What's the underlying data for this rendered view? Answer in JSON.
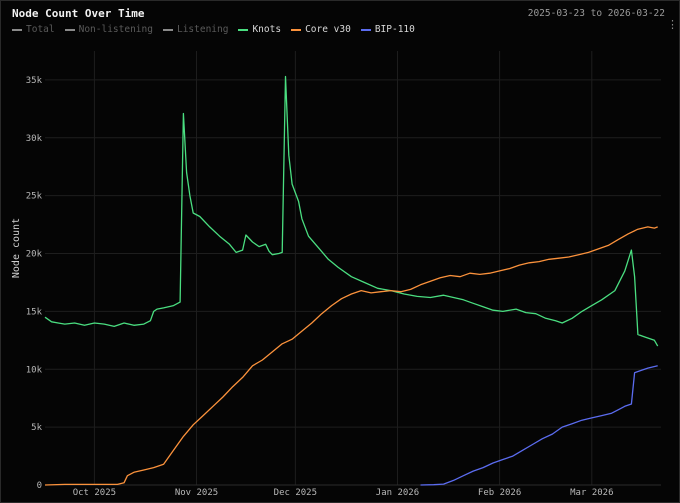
{
  "header": {
    "title": "Node Count Over Time",
    "date_range": "2025-03-23 to 2026-03-22"
  },
  "chart_data": {
    "type": "line",
    "title": "Node Count Over Time",
    "xlabel": "",
    "ylabel": "Node count",
    "ylim": [
      0,
      37500
    ],
    "y_ticks": [
      0,
      5000,
      10000,
      15000,
      20000,
      25000,
      30000,
      35000
    ],
    "y_tick_labels": [
      "0",
      "5k",
      "10k",
      "15k",
      "20k",
      "25k",
      "30k",
      "35k"
    ],
    "x_range": [
      "2025-09-16",
      "2026-03-22"
    ],
    "x_ticks": [
      "2025-10-01",
      "2025-11-01",
      "2025-12-01",
      "2026-01-01",
      "2026-02-01",
      "2026-03-01"
    ],
    "x_tick_labels": [
      "Oct 2025",
      "Nov 2025",
      "Dec 2025",
      "Jan 2026",
      "Feb 2026",
      "Mar 2026"
    ],
    "grid": true,
    "legend_position": "top-left",
    "legend": [
      {
        "name": "Total",
        "color": "#8a8a8a",
        "enabled": false
      },
      {
        "name": "Non-listening",
        "color": "#8a8a8a",
        "enabled": false
      },
      {
        "name": "Listening",
        "color": "#8a8a8a",
        "enabled": false
      },
      {
        "name": "Knots",
        "color": "#4ade80",
        "enabled": true
      },
      {
        "name": "Core v30",
        "color": "#fb923c",
        "enabled": true
      },
      {
        "name": "BIP-110",
        "color": "#5b6cf0",
        "enabled": true
      }
    ],
    "series": [
      {
        "name": "Knots",
        "color": "#4ade80",
        "points": [
          [
            "2025-09-16",
            14500
          ],
          [
            "2025-09-18",
            14100
          ],
          [
            "2025-09-20",
            14000
          ],
          [
            "2025-09-22",
            13900
          ],
          [
            "2025-09-25",
            14000
          ],
          [
            "2025-09-28",
            13800
          ],
          [
            "2025-10-01",
            14000
          ],
          [
            "2025-10-04",
            13900
          ],
          [
            "2025-10-07",
            13700
          ],
          [
            "2025-10-10",
            14000
          ],
          [
            "2025-10-13",
            13800
          ],
          [
            "2025-10-16",
            13900
          ],
          [
            "2025-10-18",
            14200
          ],
          [
            "2025-10-19",
            15000
          ],
          [
            "2025-10-20",
            15200
          ],
          [
            "2025-10-22",
            15300
          ],
          [
            "2025-10-25",
            15500
          ],
          [
            "2025-10-27",
            15800
          ],
          [
            "2025-10-28",
            32100
          ],
          [
            "2025-10-29",
            27000
          ],
          [
            "2025-10-30",
            25000
          ],
          [
            "2025-10-31",
            23500
          ],
          [
            "2025-11-02",
            23200
          ],
          [
            "2025-11-05",
            22300
          ],
          [
            "2025-11-08",
            21500
          ],
          [
            "2025-11-11",
            20800
          ],
          [
            "2025-11-13",
            20100
          ],
          [
            "2025-11-15",
            20300
          ],
          [
            "2025-11-16",
            21600
          ],
          [
            "2025-11-18",
            21000
          ],
          [
            "2025-11-20",
            20600
          ],
          [
            "2025-11-22",
            20800
          ],
          [
            "2025-11-23",
            20200
          ],
          [
            "2025-11-24",
            19900
          ],
          [
            "2025-11-26",
            20000
          ],
          [
            "2025-11-27",
            20100
          ],
          [
            "2025-11-28",
            35300
          ],
          [
            "2025-11-29",
            28500
          ],
          [
            "2025-11-30",
            26000
          ],
          [
            "2025-12-02",
            24500
          ],
          [
            "2025-12-03",
            23000
          ],
          [
            "2025-12-05",
            21500
          ],
          [
            "2025-12-08",
            20500
          ],
          [
            "2025-12-11",
            19500
          ],
          [
            "2025-12-14",
            18800
          ],
          [
            "2025-12-18",
            18000
          ],
          [
            "2025-12-22",
            17500
          ],
          [
            "2025-12-26",
            17000
          ],
          [
            "2025-12-30",
            16800
          ],
          [
            "2026-01-03",
            16500
          ],
          [
            "2026-01-07",
            16300
          ],
          [
            "2026-01-11",
            16200
          ],
          [
            "2026-01-15",
            16400
          ],
          [
            "2026-01-18",
            16200
          ],
          [
            "2026-01-21",
            16000
          ],
          [
            "2026-01-24",
            15700
          ],
          [
            "2026-01-27",
            15400
          ],
          [
            "2026-01-30",
            15100
          ],
          [
            "2026-02-02",
            15000
          ],
          [
            "2026-02-06",
            15200
          ],
          [
            "2026-02-09",
            14900
          ],
          [
            "2026-02-12",
            14800
          ],
          [
            "2026-02-15",
            14400
          ],
          [
            "2026-02-18",
            14200
          ],
          [
            "2026-02-20",
            14000
          ],
          [
            "2026-02-23",
            14400
          ],
          [
            "2026-02-26",
            15000
          ],
          [
            "2026-03-01",
            15500
          ],
          [
            "2026-03-04",
            16000
          ],
          [
            "2026-03-08",
            16800
          ],
          [
            "2026-03-11",
            18500
          ],
          [
            "2026-03-13",
            20300
          ],
          [
            "2026-03-14",
            18000
          ],
          [
            "2026-03-15",
            13000
          ],
          [
            "2026-03-17",
            12800
          ],
          [
            "2026-03-20",
            12500
          ],
          [
            "2026-03-21",
            12000
          ]
        ]
      },
      {
        "name": "Core v30",
        "color": "#fb923c",
        "points": [
          [
            "2025-09-16",
            0
          ],
          [
            "2025-09-22",
            50
          ],
          [
            "2025-09-28",
            50
          ],
          [
            "2025-10-04",
            50
          ],
          [
            "2025-10-08",
            50
          ],
          [
            "2025-10-10",
            200
          ],
          [
            "2025-10-11",
            800
          ],
          [
            "2025-10-13",
            1100
          ],
          [
            "2025-10-16",
            1300
          ],
          [
            "2025-10-19",
            1500
          ],
          [
            "2025-10-22",
            1800
          ],
          [
            "2025-10-25",
            3000
          ],
          [
            "2025-10-28",
            4200
          ],
          [
            "2025-10-31",
            5200
          ],
          [
            "2025-11-03",
            6000
          ],
          [
            "2025-11-06",
            6800
          ],
          [
            "2025-11-09",
            7600
          ],
          [
            "2025-11-12",
            8500
          ],
          [
            "2025-11-15",
            9300
          ],
          [
            "2025-11-18",
            10300
          ],
          [
            "2025-11-21",
            10800
          ],
          [
            "2025-11-24",
            11500
          ],
          [
            "2025-11-27",
            12200
          ],
          [
            "2025-11-30",
            12600
          ],
          [
            "2025-12-03",
            13300
          ],
          [
            "2025-12-06",
            14000
          ],
          [
            "2025-12-09",
            14800
          ],
          [
            "2025-12-12",
            15500
          ],
          [
            "2025-12-15",
            16100
          ],
          [
            "2025-12-18",
            16500
          ],
          [
            "2025-12-21",
            16800
          ],
          [
            "2025-12-24",
            16600
          ],
          [
            "2025-12-27",
            16700
          ],
          [
            "2025-12-30",
            16800
          ],
          [
            "2026-01-02",
            16700
          ],
          [
            "2026-01-05",
            16900
          ],
          [
            "2026-01-08",
            17300
          ],
          [
            "2026-01-11",
            17600
          ],
          [
            "2026-01-14",
            17900
          ],
          [
            "2026-01-17",
            18100
          ],
          [
            "2026-01-20",
            18000
          ],
          [
            "2026-01-23",
            18300
          ],
          [
            "2026-01-26",
            18200
          ],
          [
            "2026-01-29",
            18300
          ],
          [
            "2026-02-01",
            18500
          ],
          [
            "2026-02-04",
            18700
          ],
          [
            "2026-02-07",
            19000
          ],
          [
            "2026-02-10",
            19200
          ],
          [
            "2026-02-13",
            19300
          ],
          [
            "2026-02-16",
            19500
          ],
          [
            "2026-02-19",
            19600
          ],
          [
            "2026-02-22",
            19700
          ],
          [
            "2026-02-25",
            19900
          ],
          [
            "2026-02-28",
            20100
          ],
          [
            "2026-03-03",
            20400
          ],
          [
            "2026-03-06",
            20700
          ],
          [
            "2026-03-09",
            21200
          ],
          [
            "2026-03-12",
            21700
          ],
          [
            "2026-03-15",
            22100
          ],
          [
            "2026-03-18",
            22300
          ],
          [
            "2026-03-20",
            22200
          ],
          [
            "2026-03-21",
            22300
          ]
        ]
      },
      {
        "name": "BIP-110",
        "color": "#5b6cf0",
        "points": [
          [
            "2026-01-08",
            0
          ],
          [
            "2026-01-12",
            30
          ],
          [
            "2026-01-15",
            80
          ],
          [
            "2026-01-18",
            400
          ],
          [
            "2026-01-21",
            800
          ],
          [
            "2026-01-24",
            1200
          ],
          [
            "2026-01-27",
            1500
          ],
          [
            "2026-01-30",
            1900
          ],
          [
            "2026-02-02",
            2200
          ],
          [
            "2026-02-05",
            2500
          ],
          [
            "2026-02-08",
            3000
          ],
          [
            "2026-02-11",
            3500
          ],
          [
            "2026-02-14",
            4000
          ],
          [
            "2026-02-17",
            4400
          ],
          [
            "2026-02-20",
            5000
          ],
          [
            "2026-02-23",
            5300
          ],
          [
            "2026-02-26",
            5600
          ],
          [
            "2026-03-01",
            5800
          ],
          [
            "2026-03-04",
            6000
          ],
          [
            "2026-03-07",
            6200
          ],
          [
            "2026-03-09",
            6500
          ],
          [
            "2026-03-11",
            6800
          ],
          [
            "2026-03-13",
            7000
          ],
          [
            "2026-03-14",
            9700
          ],
          [
            "2026-03-16",
            9900
          ],
          [
            "2026-03-18",
            10100
          ],
          [
            "2026-03-21",
            10300
          ]
        ]
      }
    ]
  }
}
